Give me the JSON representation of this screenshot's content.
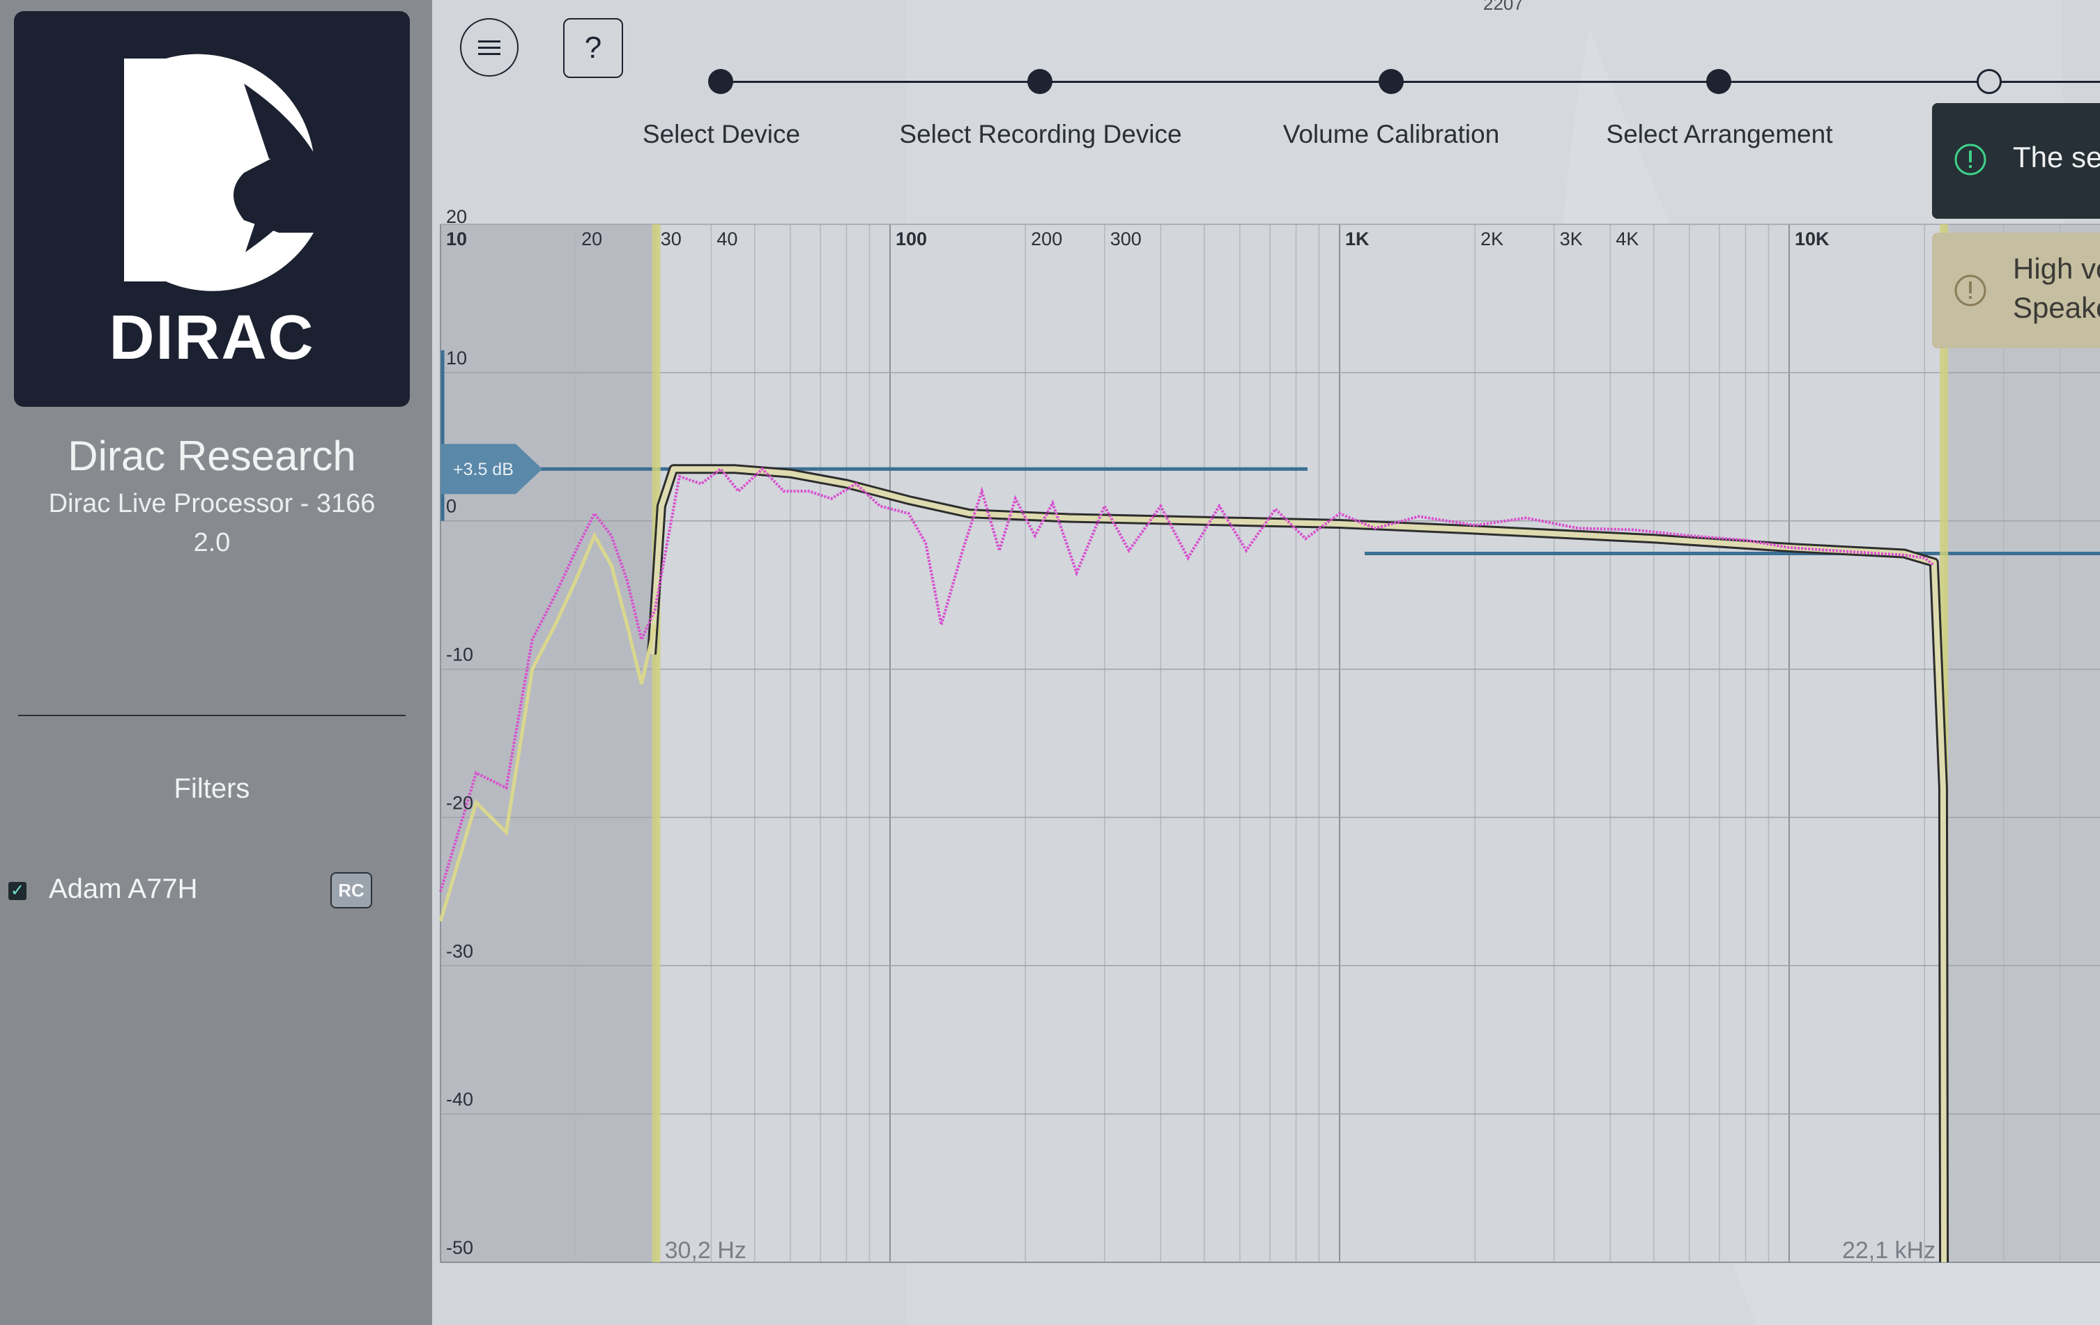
{
  "sidebar": {
    "logo_text": "DIRAC",
    "company": "Dirac Research",
    "device": "Dirac Live Processor - 3166",
    "version": "2.0",
    "filters_title": "Filters",
    "filters": [
      {
        "name": "Adam A77H",
        "badge": "RC",
        "checked": true
      }
    ]
  },
  "toolbar": {
    "menu_icon": "hamburger-icon",
    "help_label": "?"
  },
  "top_number": "2207",
  "steps": [
    {
      "label": "Select Device",
      "done": true
    },
    {
      "label": "Select Recording Device",
      "done": true
    },
    {
      "label": "Volume Calibration",
      "done": true
    },
    {
      "label": "Select Arrangement",
      "done": true
    },
    {
      "label": "",
      "done": false
    }
  ],
  "toasts": {
    "info": {
      "text": "The sel",
      "icon": "exclamation-circle-icon"
    },
    "warning": {
      "line1": "High vo",
      "line2": "Speake",
      "icon": "exclamation-circle-icon"
    }
  },
  "chart_data": {
    "type": "line",
    "x_scale": "log",
    "x_tick_labels": [
      "10",
      "20",
      "30",
      "40",
      "100",
      "200",
      "300",
      "1K",
      "2K",
      "3K",
      "4K",
      "10K"
    ],
    "y_tick_labels": [
      "20",
      "10",
      "0",
      "-10",
      "-20",
      "-30",
      "-40",
      "-50"
    ],
    "ylim": [
      -50,
      20
    ],
    "xlim": [
      10,
      31000
    ],
    "grid": true,
    "target_level_label": "+3.5 dB",
    "low_limit_label": "30,2 Hz",
    "high_limit_label": "22,1 kHz",
    "low_limit_hz": 30.2,
    "high_limit_hz": 22100,
    "colors": {
      "measured": "#d84fd0",
      "predicted": "#d9d78f",
      "target": "#2d2d2d",
      "level": "#3b6f93",
      "limit": "#cfd07d"
    },
    "series": [
      {
        "role": "target",
        "x": [
          29.5,
          31,
          33,
          45,
          60,
          80,
          110,
          150,
          250,
          500,
          1000,
          2000,
          5000,
          10000,
          18000,
          21000,
          22000,
          22100
        ],
        "y": [
          -9,
          1,
          3.5,
          3.5,
          3.2,
          2.5,
          1.4,
          0.5,
          0.2,
          0,
          -0.2,
          -0.6,
          -1.2,
          -1.8,
          -2.2,
          -2.8,
          -18,
          -50
        ]
      },
      {
        "role": "predicted",
        "x": [
          10,
          12,
          14,
          16,
          18,
          20,
          22,
          24,
          26,
          28,
          30
        ],
        "y": [
          -27,
          -19,
          -21,
          -10,
          -7,
          -4,
          -1,
          -3,
          -7,
          -11,
          -7
        ]
      },
      {
        "role": "measured",
        "x": [
          10,
          12,
          14,
          16,
          18,
          20,
          22,
          24,
          26,
          28,
          30,
          34,
          38,
          42,
          46,
          52,
          58,
          66,
          74,
          84,
          95,
          110,
          120,
          130,
          145,
          160,
          175,
          190,
          210,
          230,
          260,
          300,
          340,
          400,
          460,
          540,
          620,
          720,
          840,
          1000,
          1200,
          1500,
          2000,
          2600,
          3400,
          4500,
          6000,
          8000,
          10000,
          14000,
          18000,
          20000,
          21000
        ],
        "y": [
          -25,
          -17,
          -18,
          -8,
          -5,
          -2,
          0.5,
          -1,
          -4,
          -8,
          -6,
          3,
          2.5,
          3.5,
          2,
          3.5,
          2,
          2,
          1.5,
          2.5,
          1,
          0.5,
          -1.5,
          -7,
          -2,
          2,
          -2,
          1.5,
          -1,
          1.2,
          -3.5,
          1,
          -2,
          1,
          -2.5,
          1,
          -2,
          0.8,
          -1.2,
          0.5,
          -0.5,
          0.3,
          -0.3,
          0.2,
          -0.5,
          -0.6,
          -1,
          -1.3,
          -1.8,
          -2.1,
          -2.3,
          -2.5,
          -3
        ]
      }
    ]
  }
}
